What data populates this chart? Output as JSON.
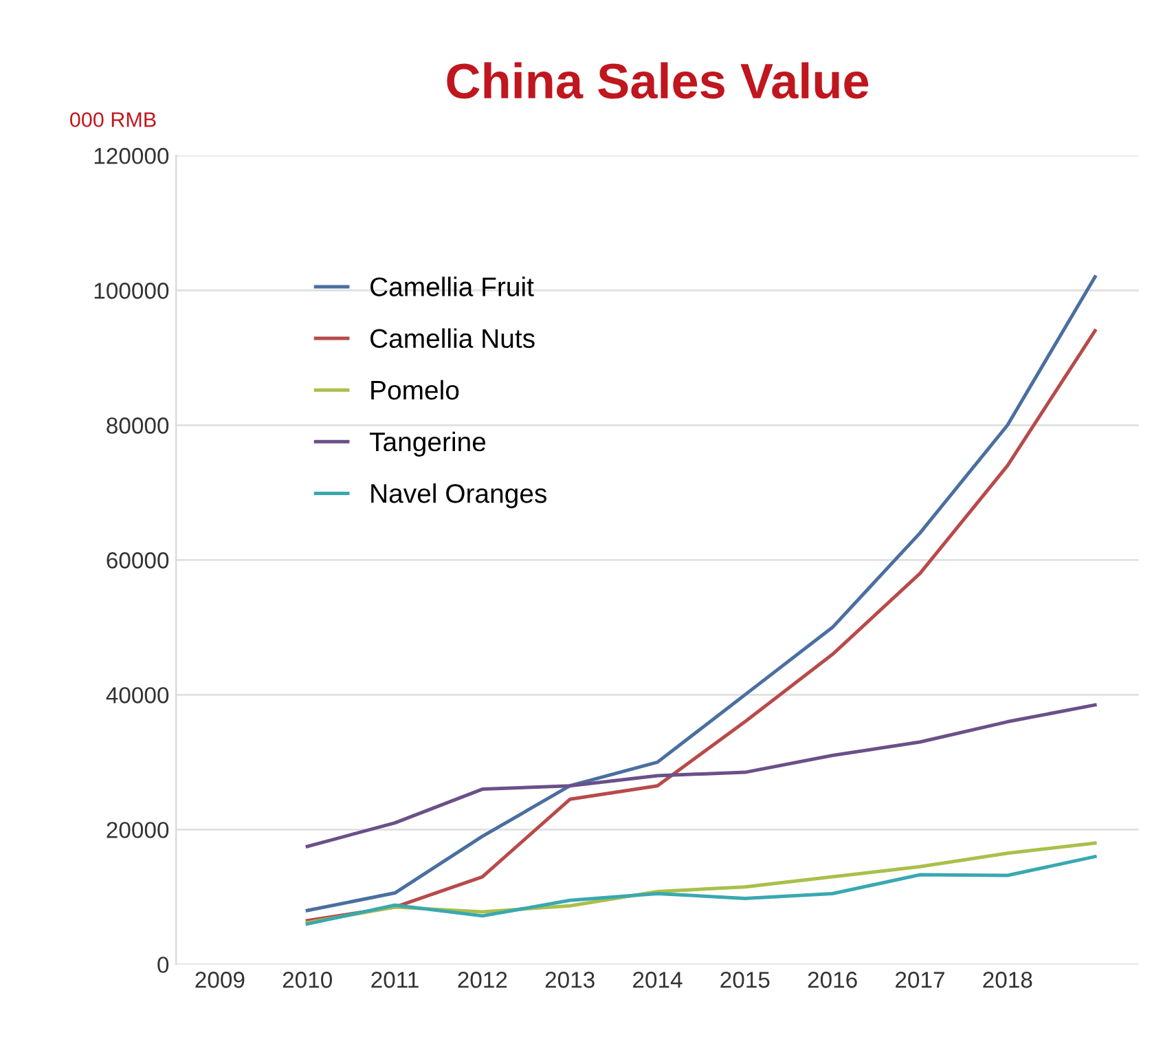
{
  "chart_data": {
    "type": "line",
    "title": "China Sales Value",
    "ylabel": "000 RMB",
    "categories": [
      "2009",
      "2010",
      "2011",
      "2012",
      "2013",
      "2014",
      "2015",
      "2016",
      "2017",
      "2018",
      null
    ],
    "series": [
      {
        "name": "Camellia Fruit",
        "color": "#4a6fa0",
        "values": [
          null,
          8000,
          10600,
          19000,
          26500,
          30000,
          40000,
          50000,
          64000,
          80000,
          102000
        ]
      },
      {
        "name": "Camellia Nuts",
        "color": "#b84a4a",
        "values": [
          null,
          6500,
          8500,
          13000,
          24500,
          26500,
          36000,
          46000,
          58000,
          74000,
          94000
        ]
      },
      {
        "name": "Pomelo",
        "color": "#a8c04a",
        "values": [
          null,
          6200,
          8500,
          7800,
          8700,
          10800,
          11500,
          13000,
          14500,
          16500,
          18000
        ]
      },
      {
        "name": "Tangerine",
        "color": "#6a5088",
        "values": [
          null,
          17500,
          21000,
          26000,
          26500,
          28000,
          28500,
          31000,
          33000,
          36000,
          38500
        ]
      },
      {
        "name": "Navel Oranges",
        "color": "#3aa8b0",
        "values": [
          null,
          6000,
          8800,
          7200,
          9500,
          10500,
          9800,
          10500,
          13300,
          13200,
          16000
        ]
      }
    ],
    "ylim": [
      0,
      120000
    ],
    "yticks": [
      0,
      20000,
      40000,
      60000,
      80000,
      100000,
      120000
    ],
    "grid": "y",
    "legend": "top left"
  }
}
